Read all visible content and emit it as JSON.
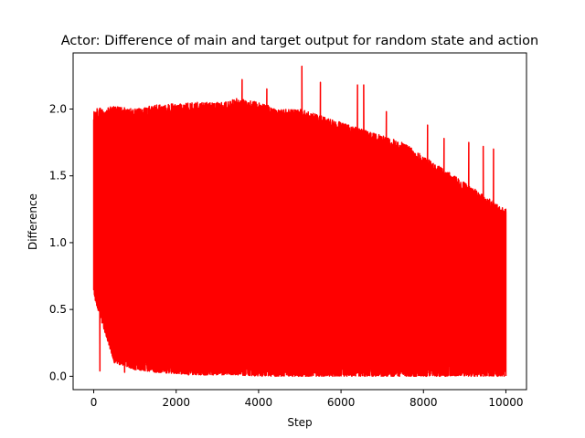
{
  "chart_data": {
    "type": "line",
    "title": "Actor: Difference of main and target output for random state and action",
    "xlabel": "Step",
    "ylabel": "Difference",
    "xlim": [
      -500,
      10500
    ],
    "ylim": [
      -0.1,
      2.42
    ],
    "x_ticks": [
      0,
      2000,
      4000,
      6000,
      8000,
      10000
    ],
    "x_tick_labels": [
      "0",
      "2000",
      "4000",
      "6000",
      "8000",
      "10000"
    ],
    "y_ticks": [
      0.0,
      0.5,
      1.0,
      1.5,
      2.0
    ],
    "y_tick_labels": [
      "0.0",
      "0.5",
      "1.0",
      "1.5",
      "2.0"
    ],
    "grid": false,
    "series": [
      {
        "color": "#ff0000",
        "step_range": [
          0,
          10000
        ],
        "envelope_x": [
          0,
          500,
          1000,
          1500,
          2000,
          2500,
          3000,
          3500,
          4000,
          4500,
          5000,
          5500,
          6000,
          6500,
          7000,
          7500,
          8000,
          8500,
          9000,
          9500,
          10000
        ],
        "envelope_upper": [
          2.0,
          2.02,
          2.0,
          2.03,
          2.04,
          2.05,
          2.05,
          2.08,
          2.05,
          2.0,
          2.0,
          1.95,
          1.9,
          1.85,
          1.8,
          1.75,
          1.65,
          1.55,
          1.45,
          1.35,
          1.25
        ],
        "envelope_lower": [
          0.6,
          0.1,
          0.05,
          0.03,
          0.02,
          0.01,
          0.01,
          0.01,
          0.0,
          0.0,
          0.0,
          0.0,
          0.0,
          0.0,
          0.0,
          0.0,
          0.0,
          0.0,
          0.0,
          0.0,
          0.0
        ],
        "peaks": [
          {
            "x": 3600,
            "y": 2.22
          },
          {
            "x": 4200,
            "y": 2.15
          },
          {
            "x": 5050,
            "y": 2.32
          },
          {
            "x": 5500,
            "y": 2.2
          },
          {
            "x": 6400,
            "y": 2.18
          },
          {
            "x": 6550,
            "y": 2.18
          },
          {
            "x": 7100,
            "y": 1.98
          },
          {
            "x": 8100,
            "y": 1.88
          },
          {
            "x": 8500,
            "y": 1.78
          },
          {
            "x": 9100,
            "y": 1.75
          },
          {
            "x": 9450,
            "y": 1.72
          },
          {
            "x": 9700,
            "y": 1.7
          }
        ],
        "dips": [
          {
            "x": 50,
            "y": 0.58
          },
          {
            "x": 150,
            "y": 0.04
          },
          {
            "x": 750,
            "y": 0.03
          },
          {
            "x": 1500,
            "y": 0.03
          },
          {
            "x": 1550,
            "y": 0.85
          },
          {
            "x": 2300,
            "y": 0.01
          },
          {
            "x": 2700,
            "y": 0.01
          }
        ]
      }
    ]
  }
}
